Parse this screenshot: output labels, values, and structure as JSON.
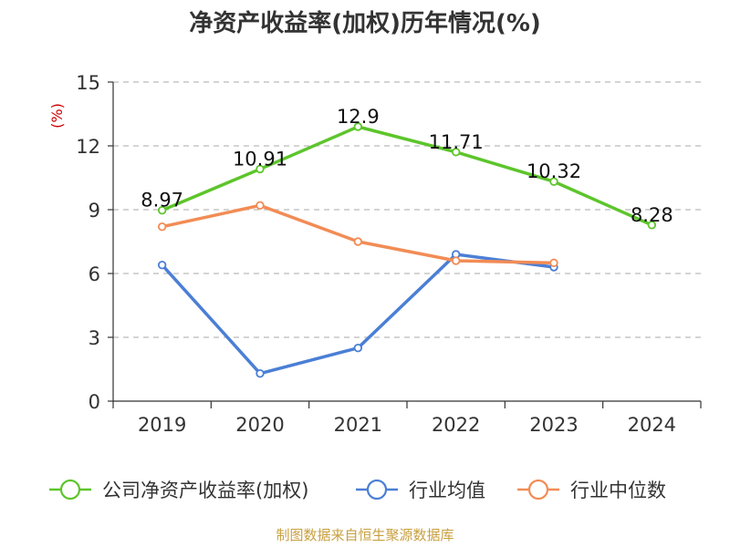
{
  "chart_data": {
    "type": "line",
    "title": "净资产收益率(加权)历年情况(%)",
    "ylabel": "(%)",
    "xlabel": "",
    "categories": [
      "2019",
      "2020",
      "2021",
      "2022",
      "2023",
      "2024"
    ],
    "ylim": [
      0,
      15
    ],
    "yticks": [
      0,
      3,
      6,
      9,
      12,
      15
    ],
    "grid": true,
    "legend_position": "bottom",
    "series": [
      {
        "name": "公司净资产收益率(加权)",
        "color": "#5dc52b",
        "values": [
          8.97,
          10.91,
          12.9,
          11.71,
          10.32,
          8.28
        ],
        "labels": [
          "8.97",
          "10.91",
          "12.9",
          "11.71",
          "10.32",
          "8.28"
        ]
      },
      {
        "name": "行业均值",
        "color": "#4b7fd6",
        "values": [
          6.4,
          1.3,
          2.5,
          6.9,
          6.3,
          null
        ]
      },
      {
        "name": "行业中位数",
        "color": "#f28c55",
        "values": [
          8.2,
          9.2,
          7.5,
          6.6,
          6.5,
          null
        ]
      }
    ],
    "source": "制图数据来自恒生聚源数据库"
  }
}
